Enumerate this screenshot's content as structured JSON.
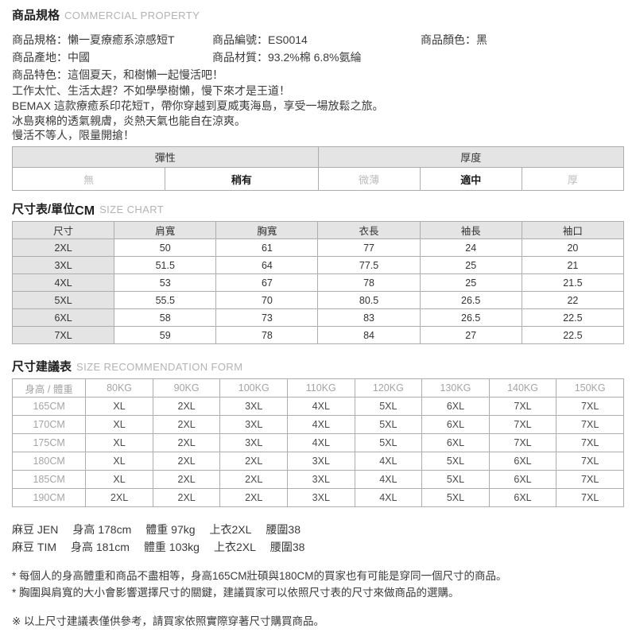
{
  "colors": {
    "text": "#3a3a3a",
    "muted_option_text": "#bcbcbc",
    "selected_option_text": "#1a1a1a",
    "gray_label_text": "#a4a4a4",
    "subtitle_gray": "#b3b3b3",
    "table_border": "#adadad",
    "table_header_bg": "#e4e4e4"
  },
  "header": {
    "title": "商品規格",
    "subtitle": "COMMERCIAL PROPERTY"
  },
  "info": {
    "rows": [
      [
        {
          "label": "商品規格：",
          "value": "懶一夏療癒系涼感短T"
        },
        {
          "label": "商品編號：",
          "value": "ES0014"
        },
        {
          "label": "商品顏色：",
          "value": "黑"
        }
      ],
      [
        {
          "label": "商品產地：",
          "value": "中國"
        },
        {
          "label": "商品材質：",
          "value": "93.2%棉 6.8%氨綸"
        }
      ],
      [
        {
          "label": "商品特色：",
          "value": "這個夏天，和樹懶一起慢活吧！"
        }
      ]
    ],
    "description_lines": [
      "工作太忙、生活太趕？不如學學樹懶，慢下來才是王道！",
      "BEMAX 這款療癒系印花短T，帶你穿越到夏威夷海島，享受一場放鬆之旅。",
      "冰島爽棉的透氣親膚，炎熱天氣也能自在涼爽。",
      "慢活不等人，限量開搶！"
    ]
  },
  "attributes": {
    "groups": [
      {
        "label": "彈性",
        "options": [
          {
            "text": "無",
            "selected": false
          },
          {
            "text": "稍有",
            "selected": true
          }
        ]
      },
      {
        "label": "厚度",
        "options": [
          {
            "text": "微薄",
            "selected": false
          },
          {
            "text": "適中",
            "selected": true
          },
          {
            "text": "厚",
            "selected": false
          }
        ]
      }
    ]
  },
  "size_chart": {
    "title": "尺寸表/單位",
    "title_unit": "CM",
    "subtitle": "SIZE CHART",
    "columns": [
      "尺寸",
      "肩寬",
      "胸寬",
      "衣長",
      "袖長",
      "袖口"
    ],
    "rows": [
      [
        "2XL",
        "50",
        "61",
        "77",
        "24",
        "20"
      ],
      [
        "3XL",
        "51.5",
        "64",
        "77.5",
        "25",
        "21"
      ],
      [
        "4XL",
        "53",
        "67",
        "78",
        "25",
        "21.5"
      ],
      [
        "5XL",
        "55.5",
        "70",
        "80.5",
        "26.5",
        "22"
      ],
      [
        "6XL",
        "58",
        "73",
        "83",
        "26.5",
        "22.5"
      ],
      [
        "7XL",
        "59",
        "78",
        "84",
        "27",
        "22.5"
      ]
    ]
  },
  "recommendation": {
    "title": "尺寸建議表",
    "subtitle": "SIZE RECOMMENDATION FORM",
    "columns": [
      "身高 / 體重",
      "80KG",
      "90KG",
      "100KG",
      "110KG",
      "120KG",
      "130KG",
      "140KG",
      "150KG"
    ],
    "rows": [
      [
        "165CM",
        "XL",
        "2XL",
        "3XL",
        "4XL",
        "5XL",
        "6XL",
        "7XL",
        "7XL"
      ],
      [
        "170CM",
        "XL",
        "2XL",
        "3XL",
        "4XL",
        "5XL",
        "6XL",
        "7XL",
        "7XL"
      ],
      [
        "175CM",
        "XL",
        "2XL",
        "3XL",
        "4XL",
        "5XL",
        "6XL",
        "7XL",
        "7XL"
      ],
      [
        "180CM",
        "XL",
        "2XL",
        "2XL",
        "3XL",
        "4XL",
        "5XL",
        "6XL",
        "7XL"
      ],
      [
        "185CM",
        "XL",
        "2XL",
        "2XL",
        "3XL",
        "4XL",
        "5XL",
        "6XL",
        "7XL"
      ],
      [
        "190CM",
        "2XL",
        "2XL",
        "2XL",
        "3XL",
        "4XL",
        "5XL",
        "6XL",
        "7XL"
      ]
    ]
  },
  "models": [
    [
      "麻豆 JEN",
      "身高 178cm",
      "體重 97kg",
      "上衣2XL",
      "腰圍38"
    ],
    [
      "麻豆 TIM",
      "身高 181cm",
      "體重 103kg",
      "上衣2XL",
      "腰圍38"
    ]
  ],
  "notes": [
    "* 每個人的身高體重和商品不盡相等，身高165CM壯碩與180CM的買家也有可能是穿同一個尺寸的商品。",
    "* 胸圍與肩寬的大小會影響選擇尺寸的關鍵，建議買家可以依照尺寸表的尺寸來做商品的選購。"
  ],
  "disclaimer": "※ 以上尺寸建議表僅供參考，請買家依照實際穿著尺寸購買商品。"
}
